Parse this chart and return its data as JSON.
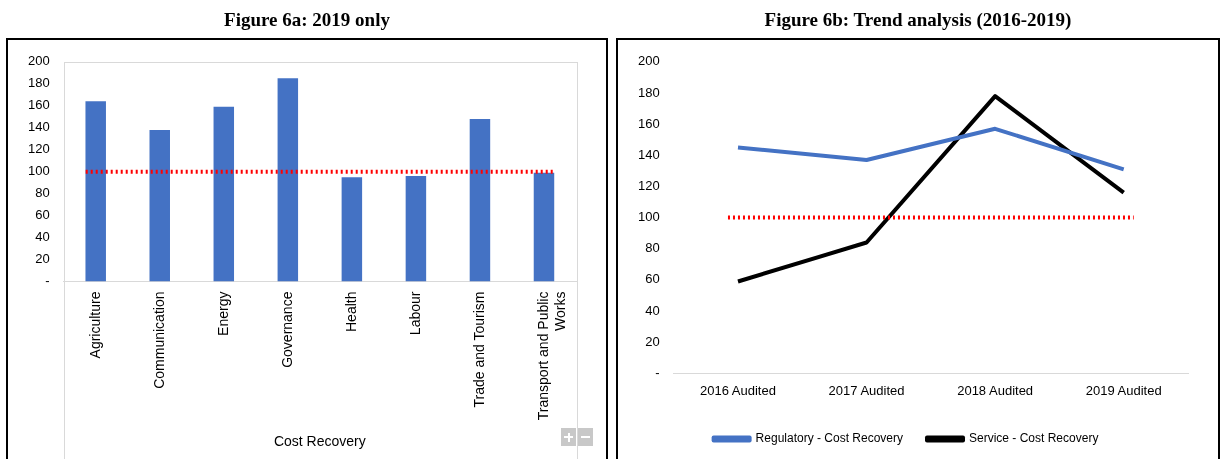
{
  "chart_data": [
    {
      "type": "bar",
      "title": "Figure 6a: 2019 only",
      "xlabel": "Cost Recovery",
      "categories": [
        "Agriculture",
        "Communication",
        "Energy",
        "Governance",
        "Health",
        "Labour",
        "Trade and Tourism",
        "Transport and Public Works"
      ],
      "values": [
        164,
        138,
        159,
        185,
        95,
        96,
        148,
        99
      ],
      "color": "#4472c4",
      "ylim": [
        0,
        200
      ],
      "yticks": [
        {
          "value": 0,
          "label": "-"
        },
        20,
        40,
        60,
        80,
        100,
        120,
        140,
        160,
        180,
        200
      ],
      "ref_lines": [
        {
          "axis": "y",
          "value": 100,
          "color": "#ff0000",
          "line_style": "dotted"
        }
      ],
      "grid": false,
      "legend": false
    },
    {
      "type": "line",
      "title": "Figure 6b: Trend analysis (2016-2019)",
      "categories": [
        "2016 Audited",
        "2017 Audited",
        "2018 Audited",
        "2019 Audited"
      ],
      "series": [
        {
          "name": "Regulatory - Cost Recovery",
          "color": "#4472c4",
          "values": [
            145,
            137,
            157,
            131
          ]
        },
        {
          "name": "Service - Cost Recovery",
          "color": "#000000",
          "values": [
            59,
            84,
            178,
            116
          ]
        }
      ],
      "ylim": [
        0,
        200
      ],
      "yticks": [
        {
          "value": 0,
          "label": "-"
        },
        20,
        40,
        60,
        80,
        100,
        120,
        140,
        160,
        180,
        200
      ],
      "ref_lines": [
        {
          "axis": "y",
          "value": 100,
          "color": "#ff0000",
          "line_style": "dotted"
        }
      ],
      "marker": "none",
      "line_style": "solid",
      "grid": false,
      "legend": "bottom"
    }
  ]
}
